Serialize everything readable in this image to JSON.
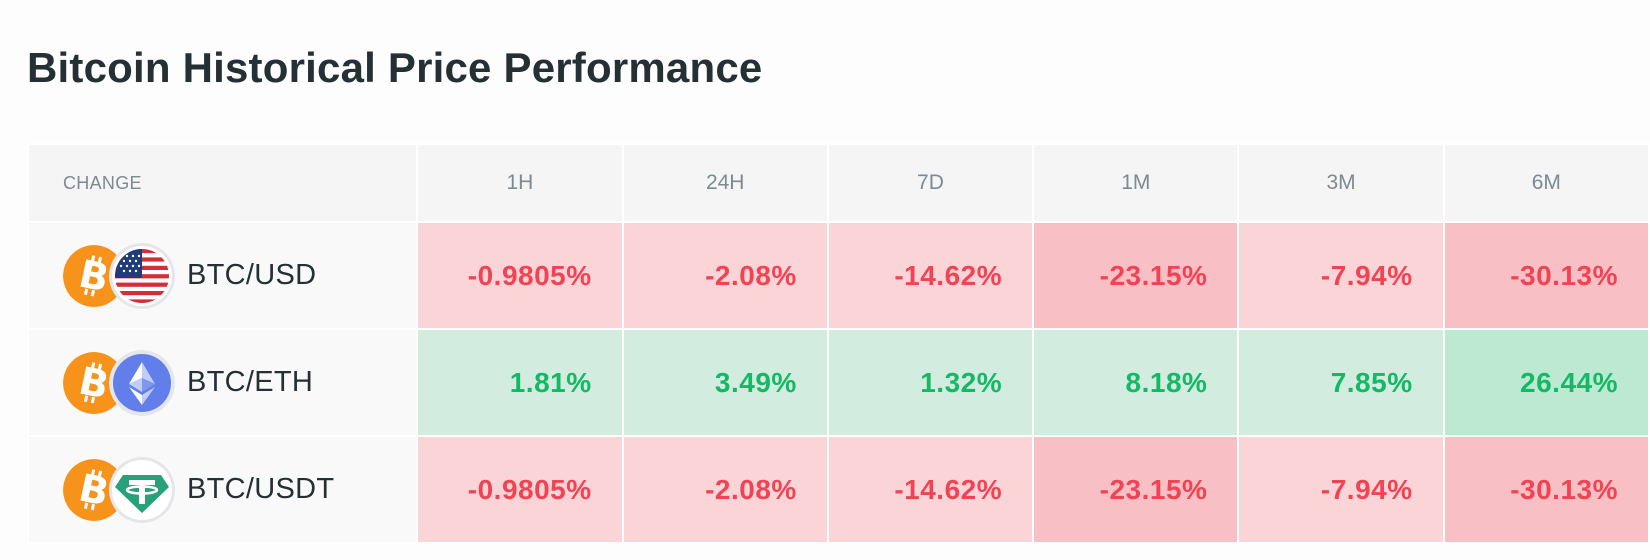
{
  "page": {
    "title": "Bitcoin Historical Price Performance"
  },
  "table": {
    "columns": [
      "CHANGE",
      "1H",
      "24H",
      "7D",
      "1M",
      "3M",
      "6M"
    ],
    "rows": [
      {
        "pair": "BTC/USD",
        "base_icon": "bitcoin-icon",
        "quote_icon": "us-flag-icon",
        "values": [
          "-0.9805%",
          "-2.08%",
          "-14.62%",
          "-23.15%",
          "-7.94%",
          "-30.13%"
        ]
      },
      {
        "pair": "BTC/ETH",
        "base_icon": "bitcoin-icon",
        "quote_icon": "ethereum-icon",
        "values": [
          "1.81%",
          "3.49%",
          "1.32%",
          "8.18%",
          "7.85%",
          "26.44%"
        ]
      },
      {
        "pair": "BTC/USDT",
        "base_icon": "bitcoin-icon",
        "quote_icon": "tether-icon",
        "values": [
          "-0.9805%",
          "-2.08%",
          "-14.62%",
          "-23.15%",
          "-7.94%",
          "-30.13%"
        ]
      }
    ]
  },
  "colors": {
    "negative_text": "#f24355",
    "positive_text": "#14b865",
    "negative_bg": "#fbd4d7",
    "negative_bg_strong": "#f8c0c4",
    "positive_bg": "#d2ecdf",
    "positive_bg_strong": "#bde8d1",
    "bitcoin": "#f7931a",
    "ethereum": "#627eea",
    "tether": "#26a17b"
  }
}
